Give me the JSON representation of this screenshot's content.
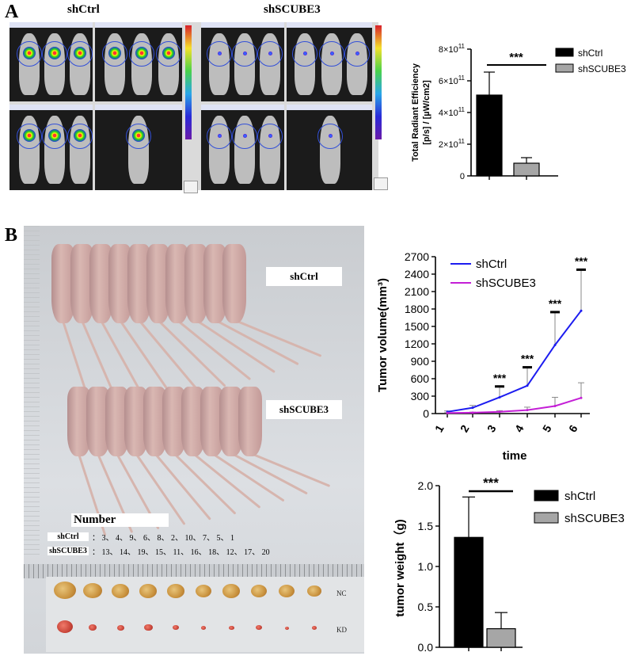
{
  "panel_a": {
    "label": "A",
    "group_ctrl": "shCtrl",
    "group_kd": "shSCUBE3"
  },
  "panel_b": {
    "label": "B",
    "photo_label_ctrl": "shCtrl",
    "photo_label_kd": "shSCUBE3",
    "number_title": "Number",
    "number_rows": [
      {
        "name": "shCtrl",
        "values": "： 3、 4、 9、 6、 8、 2、 10、 7、 5、 1"
      },
      {
        "name": "shSCUBE3",
        "values": "： 13、 14、 19、 15、 11、 16、 18、 12、 17、 20"
      }
    ],
    "tray_label_nc": "NC",
    "tray_label_kd": "KD"
  },
  "chart_data": [
    {
      "type": "bar",
      "categories": [
        "shCtrl",
        "shSCUBE3"
      ],
      "values": [
        510000000000.0,
        80000000000.0
      ],
      "errors": [
        145000000000.0,
        35000000000.0
      ],
      "colors": [
        "#000000",
        "#a6a6a6"
      ],
      "ylabel_line1": "Total Radiant Efficiency",
      "ylabel_line2": "[p/s] / [µW/cm2]",
      "ylim": [
        0,
        800000000000.0
      ],
      "yticks": [
        {
          "v": 0,
          "base": "0",
          "exp": ""
        },
        {
          "v": 200000000000.0,
          "base": "2×10",
          "exp": "11"
        },
        {
          "v": 400000000000.0,
          "base": "4×10",
          "exp": "11"
        },
        {
          "v": 600000000000.0,
          "base": "6×10",
          "exp": "11"
        },
        {
          "v": 800000000000.0,
          "base": "8×10",
          "exp": "11"
        }
      ],
      "significance": "***",
      "legend": [
        "shCtrl",
        "shSCUBE3"
      ],
      "legend_position": "right"
    },
    {
      "type": "line",
      "x": [
        "1",
        "2",
        "3",
        "4",
        "5",
        "6"
      ],
      "series": [
        {
          "name": "shCtrl",
          "color": "#1c1cf0",
          "values": [
            30,
            100,
            280,
            480,
            1180,
            1770
          ],
          "errors": [
            15,
            40,
            200,
            330,
            580,
            720
          ]
        },
        {
          "name": "shSCUBE3",
          "color": "#c41fd6",
          "values": [
            10,
            15,
            30,
            60,
            130,
            270
          ],
          "errors": [
            5,
            10,
            20,
            50,
            150,
            260
          ]
        }
      ],
      "xlabel": "time",
      "ylabel": "Tumor volume(mm³)",
      "ylim": [
        0,
        2700
      ],
      "yticks": [
        0,
        300,
        600,
        900,
        1200,
        1500,
        1800,
        2100,
        2400,
        2700
      ],
      "significance": [
        "",
        "",
        "***",
        "***",
        "***",
        "***"
      ],
      "legend_position": "top-left"
    },
    {
      "type": "bar",
      "categories": [
        "shCtrl",
        "shSCUBE3"
      ],
      "values": [
        1.36,
        0.23
      ],
      "errors": [
        0.5,
        0.2
      ],
      "colors": [
        "#000000",
        "#a6a6a6"
      ],
      "ylabel": "tumor weight（g)",
      "ylim": [
        0,
        2.0
      ],
      "yticks": [
        "0.0",
        "0.5",
        "1.0",
        "1.5",
        "2.0"
      ],
      "significance": "***",
      "legend": [
        "shCtrl",
        "shSCUBE3"
      ],
      "legend_position": "right"
    }
  ]
}
